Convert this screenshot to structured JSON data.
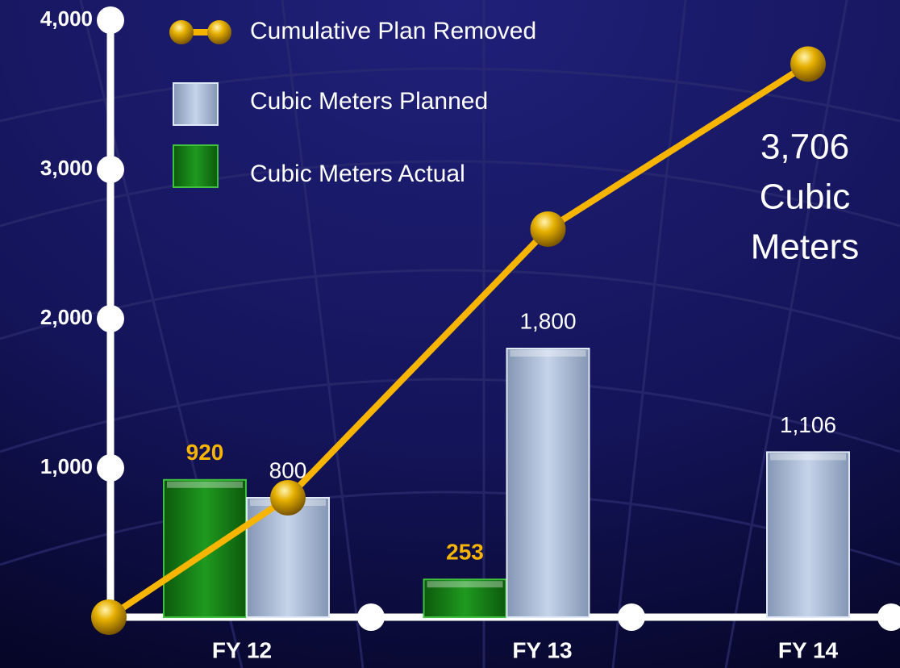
{
  "chart_data": {
    "type": "bar_line",
    "categories": [
      "FY 12",
      "FY 13",
      "FY 14"
    ],
    "series": [
      {
        "name": "Cubic Meters Actual",
        "color": "#1a8a1a",
        "values": [
          920,
          253,
          null
        ]
      },
      {
        "name": "Cubic Meters Planned",
        "color": "#b8c8e0",
        "values": [
          800,
          1800,
          1106
        ],
        "value_labels": [
          "800",
          "1,800",
          "1,106"
        ]
      }
    ],
    "line": {
      "name": "Cumulative Plan Removed",
      "color": "#f7b500",
      "start": 0,
      "values": [
        800,
        2600,
        3706
      ]
    },
    "annotation": [
      "3,706",
      "Cubic",
      "Meters"
    ],
    "ylim": [
      0,
      4000
    ],
    "yticks": [
      {
        "value": 1000,
        "label": "1,000"
      },
      {
        "value": 2000,
        "label": "2,000"
      },
      {
        "value": 3000,
        "label": "3,000"
      },
      {
        "value": 4000,
        "label": "4,000"
      }
    ]
  }
}
